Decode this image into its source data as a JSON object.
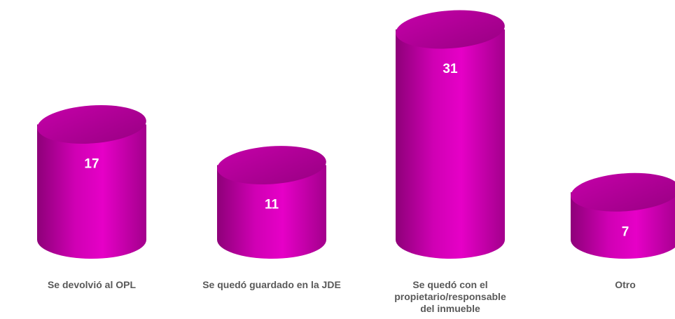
{
  "chart_data": {
    "type": "bar",
    "style": "3d-cylinder",
    "categories": [
      "Se devolvió al OPL",
      "Se quedó guardado en la JDE",
      "Se quedó con el propietario/responsable del inmueble",
      "Otro"
    ],
    "values": [
      17,
      11,
      31,
      7
    ],
    "data_labels": [
      "17",
      "11",
      "31",
      "7"
    ],
    "title": "",
    "xlabel": "",
    "ylabel": "",
    "ylim": [
      0,
      31
    ],
    "grid": false,
    "legend": "none",
    "colors": {
      "bar_body_dark": "#8e0079",
      "bar_body_light": "#e600c7",
      "bar_top": "#b0009a",
      "label_text": "#595959",
      "value_text": "#ffffff"
    }
  }
}
